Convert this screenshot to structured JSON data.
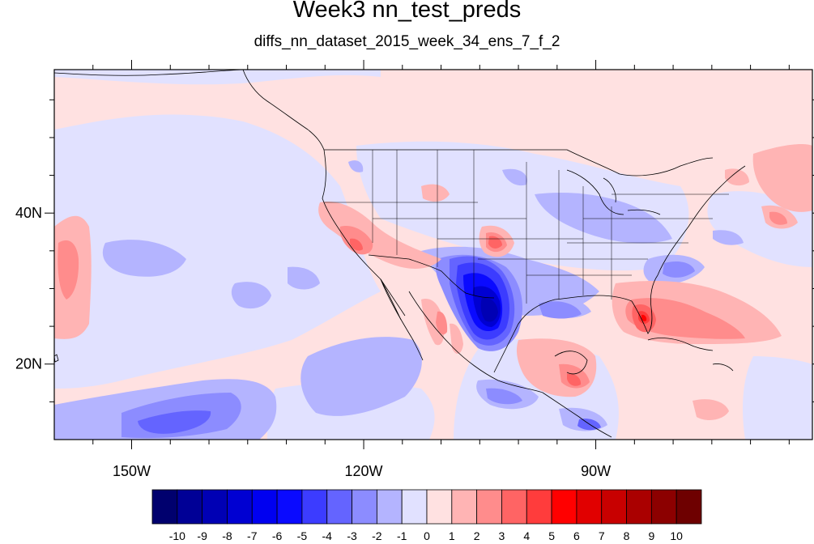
{
  "title": "Week3 nn_test_preds",
  "subtitle": "diffs_nn_dataset_2015_week_34_ens_7_f_2",
  "map": {
    "lon_range": [
      -160,
      -62
    ],
    "lat_range": [
      10,
      59
    ],
    "x_ticks": [
      {
        "lon": -150,
        "label": "150W"
      },
      {
        "lon": -120,
        "label": "120W"
      },
      {
        "lon": -90,
        "label": "90W"
      }
    ],
    "y_ticks": [
      {
        "lat": 40,
        "label": "40N"
      },
      {
        "lat": 20,
        "label": "20N"
      }
    ]
  },
  "colorbar": {
    "labels": [
      "-10",
      "-9",
      "-8",
      "-7",
      "-6",
      "-5",
      "-4",
      "-3",
      "-2",
      "-1",
      "0",
      "1",
      "2",
      "3",
      "4",
      "5",
      "6",
      "7",
      "8",
      "9",
      "10"
    ],
    "colors": [
      "#00006e",
      "#000096",
      "#0000b4",
      "#0000d2",
      "#0000f0",
      "#0a0aff",
      "#3c3cff",
      "#6464ff",
      "#8c8cff",
      "#b4b4ff",
      "#e1e1ff",
      "#ffe1e1",
      "#ffb4b4",
      "#ff8c8c",
      "#ff6464",
      "#ff3c3c",
      "#ff0000",
      "#e10000",
      "#c80000",
      "#aa0000",
      "#8c0000",
      "#6e0000"
    ]
  }
}
